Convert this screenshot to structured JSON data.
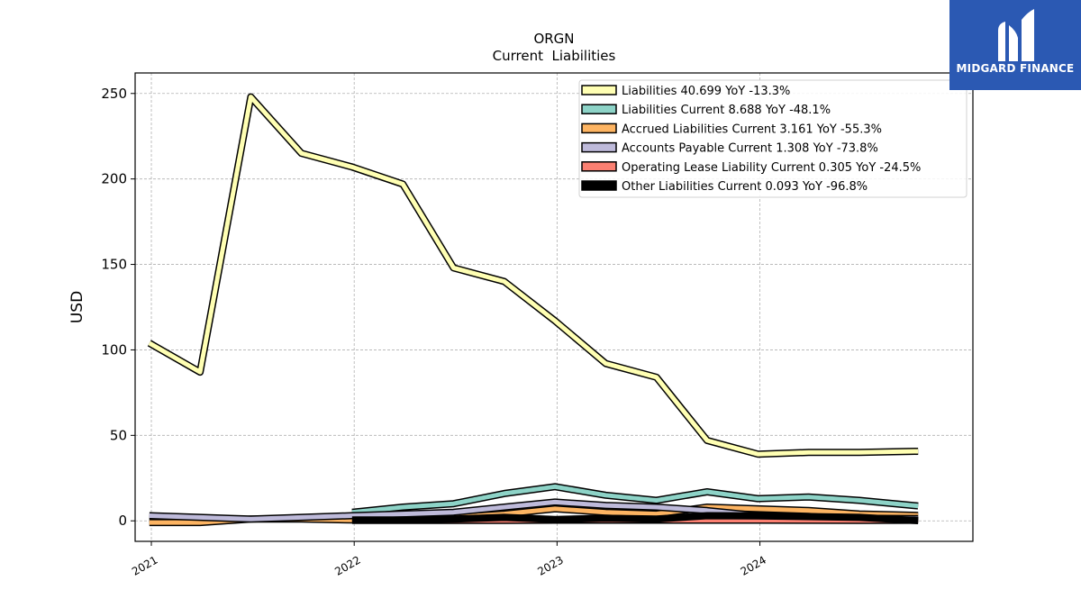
{
  "chart_data": {
    "type": "line",
    "title": "ORGN",
    "subtitle": "Current  Liabilities",
    "ylabel": "USD",
    "xlabel": "",
    "ylim": [
      -12,
      262
    ],
    "xlim": [
      2020.92,
      2025.05
    ],
    "yticks": [
      0,
      50,
      100,
      150,
      200,
      250
    ],
    "xticks": [
      {
        "value": 2021,
        "label": "2021"
      },
      {
        "value": 2022,
        "label": "2022"
      },
      {
        "value": 2023,
        "label": "2023"
      },
      {
        "value": 2024,
        "label": "2024"
      }
    ],
    "grid": true,
    "legend_position": "top-right",
    "series": [
      {
        "name": "Liabilities",
        "legend": "Liabilities  40.699 YoY -13.3%",
        "color": "#ffffb3",
        "x": [
          2020.99,
          2021.24,
          2021.49,
          2021.74,
          2021.99,
          2022.24,
          2022.49,
          2022.74,
          2022.99,
          2023.24,
          2023.49,
          2023.74,
          2023.99,
          2024.24,
          2024.49,
          2024.78
        ],
        "y": [
          104,
          87,
          248,
          215,
          207,
          197,
          148,
          140,
          117,
          92,
          84,
          47,
          39,
          40,
          40,
          40.699
        ]
      },
      {
        "name": "Liabilities Current",
        "legend": "Liabilities Current  8.688 YoY -48.1%",
        "color": "#8dd3c7",
        "x": [
          2021.99,
          2022.24,
          2022.49,
          2022.74,
          2022.99,
          2023.24,
          2023.49,
          2023.74,
          2023.99,
          2024.24,
          2024.49,
          2024.78
        ],
        "y": [
          5,
          8,
          10,
          16,
          20,
          15,
          12,
          17,
          13,
          14,
          12,
          8.688
        ]
      },
      {
        "name": "Accrued Liabilities Current",
        "legend": "Accrued Liabilities Current  3.161 YoY -55.3%",
        "color": "#fdb462",
        "x": [
          2020.99,
          2021.24,
          2021.49,
          2021.74,
          2021.99,
          2022.24,
          2022.49,
          2022.74,
          2022.99,
          2023.24,
          2023.49,
          2023.74,
          2023.99,
          2024.24,
          2024.49,
          2024.78
        ],
        "y": [
          -1,
          -1,
          1,
          1,
          0.5,
          1,
          2,
          4,
          7,
          5,
          4,
          8,
          7,
          6,
          4,
          3.161
        ]
      },
      {
        "name": "Accounts Payable Current",
        "legend": "Accounts Payable Current  1.308 YoY -73.8%",
        "color": "#bebada",
        "x": [
          2020.99,
          2021.24,
          2021.49,
          2021.74,
          2021.99,
          2022.24,
          2022.49,
          2022.74,
          2022.99,
          2023.24,
          2023.49,
          2023.74,
          2023.99,
          2024.24,
          2024.49,
          2024.78
        ],
        "y": [
          3,
          2,
          1,
          2,
          3,
          4,
          5,
          8,
          11,
          9,
          8,
          6,
          3,
          2,
          1.5,
          1.308
        ]
      },
      {
        "name": "Operating Lease Liability Current",
        "legend": "Operating Lease Liability Current  0.305 YoY -24.5%",
        "color": "#fb8072",
        "x": [
          2021.99,
          2022.24,
          2022.49,
          2022.74,
          2022.99,
          2023.24,
          2023.49,
          2023.74,
          2023.99,
          2024.24,
          2024.49,
          2024.78
        ],
        "y": [
          0.3,
          0.3,
          0.3,
          0.3,
          0.4,
          0.4,
          0.4,
          0.4,
          0.4,
          0.35,
          0.3,
          0.305
        ]
      },
      {
        "name": "Other Liabilities Current",
        "legend": "Other Liabilities Current  0.093 YoY -96.8%",
        "color": "#000000",
        "x": [
          2021.99,
          2022.24,
          2022.49,
          2022.74,
          2022.99,
          2023.24,
          2023.49,
          2023.74,
          2023.99,
          2024.24,
          2024.49,
          2024.78
        ],
        "y": [
          0.5,
          0.5,
          1,
          2,
          0.8,
          1.5,
          1,
          3,
          2.9,
          2.5,
          2,
          0.093
        ]
      }
    ]
  },
  "logo": {
    "text": "MIDGARD FINANCE",
    "background": "#2b59b3"
  }
}
